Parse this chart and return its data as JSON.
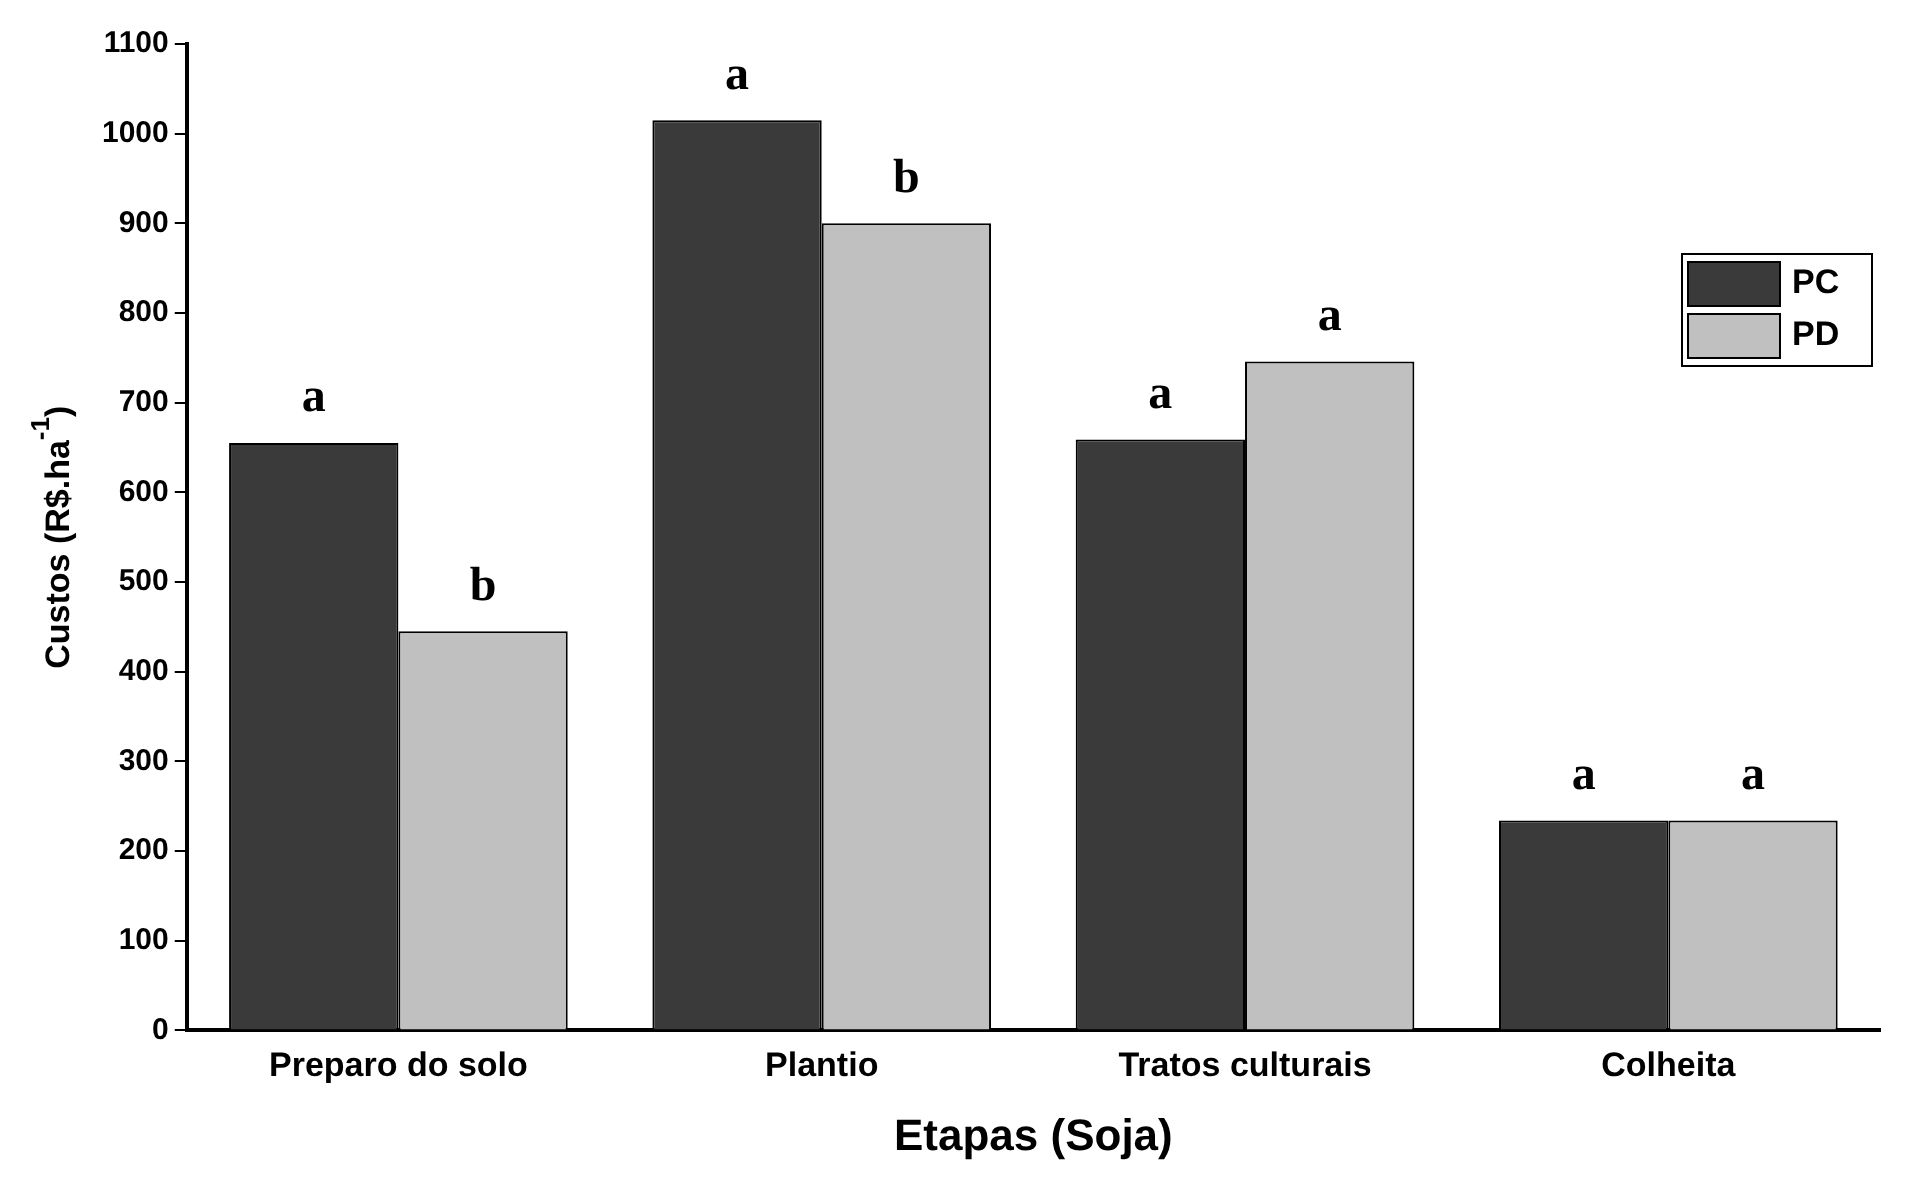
{
  "chart_data": {
    "type": "bar",
    "xlabel": "Etapas (Soja)",
    "ylabel": "Custos (R$.ha$^{-1}$)",
    "categories": [
      "Preparo do solo",
      "Plantio",
      "Tratos culturais",
      "Colheita"
    ],
    "series": [
      {
        "name": "PC",
        "color": "#3a3a3a",
        "values": [
          655,
          1015,
          659,
          234
        ],
        "value_labels": [
          "a",
          "a",
          "a",
          "a"
        ]
      },
      {
        "name": "PD",
        "color": "#c0c0c0",
        "values": [
          445,
          900,
          746,
          234
        ],
        "value_labels": [
          "b",
          "b",
          "a",
          "a"
        ]
      }
    ],
    "ylim": [
      0,
      1100
    ],
    "yticks": [
      0,
      100,
      200,
      300,
      400,
      500,
      600,
      700,
      800,
      900,
      1000,
      1100
    ],
    "grid": false,
    "legend": "top right"
  }
}
